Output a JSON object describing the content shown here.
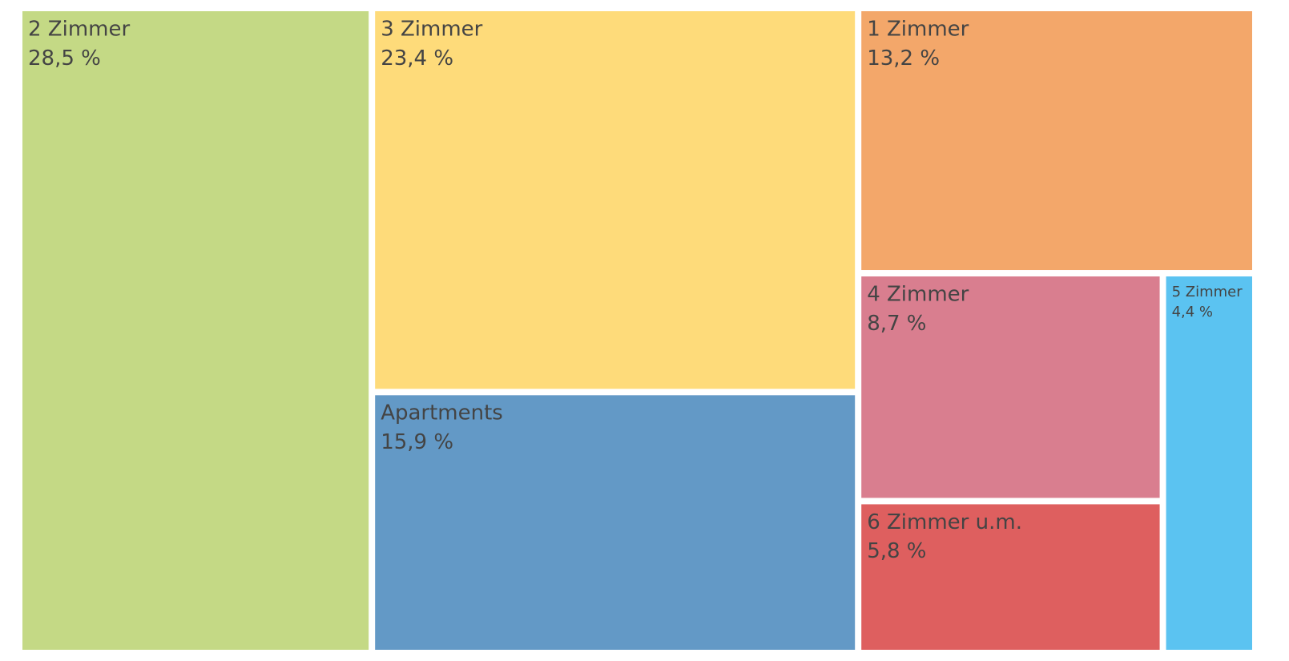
{
  "chart_data": {
    "type": "treemap",
    "categories": [
      "2 Zimmer",
      "3 Zimmer",
      "1 Zimmer",
      "Apartments",
      "4 Zimmer",
      "5 Zimmer",
      "6 Zimmer u.m."
    ],
    "values": [
      28.5,
      23.4,
      13.2,
      15.9,
      8.7,
      4.4,
      5.8
    ],
    "value_labels": [
      "28,5 %",
      "23,4 %",
      "13,2 %",
      "15,9 %",
      "8,7 %",
      "4,4 %",
      "5,8 %"
    ],
    "colors": [
      "#c4d985",
      "#fedb7a",
      "#f3a76a",
      "#6399c6",
      "#d97e8f",
      "#5bc3f1",
      "#de5f5f"
    ]
  }
}
